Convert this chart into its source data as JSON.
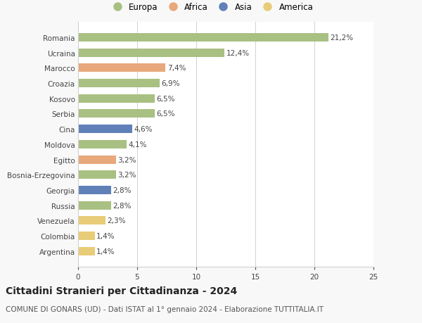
{
  "categories": [
    "Romania",
    "Ucraina",
    "Marocco",
    "Croazia",
    "Kosovo",
    "Serbia",
    "Cina",
    "Moldova",
    "Egitto",
    "Bosnia-Erzegovina",
    "Georgia",
    "Russia",
    "Venezuela",
    "Colombia",
    "Argentina"
  ],
  "values": [
    21.2,
    12.4,
    7.4,
    6.9,
    6.5,
    6.5,
    4.6,
    4.1,
    3.2,
    3.2,
    2.8,
    2.8,
    2.3,
    1.4,
    1.4
  ],
  "labels": [
    "21,2%",
    "12,4%",
    "7,4%",
    "6,9%",
    "6,5%",
    "6,5%",
    "4,6%",
    "4,1%",
    "3,2%",
    "3,2%",
    "2,8%",
    "2,8%",
    "2,3%",
    "1,4%",
    "1,4%"
  ],
  "continents": [
    "Europa",
    "Europa",
    "Africa",
    "Europa",
    "Europa",
    "Europa",
    "Asia",
    "Europa",
    "Africa",
    "Europa",
    "Asia",
    "Europa",
    "America",
    "America",
    "America"
  ],
  "colors": {
    "Europa": "#a8c082",
    "Africa": "#e8a87c",
    "Asia": "#6080b8",
    "America": "#e8cc78"
  },
  "title": "Cittadini Stranieri per Cittadinanza - 2024",
  "subtitle": "COMUNE DI GONARS (UD) - Dati ISTAT al 1° gennaio 2024 - Elaborazione TUTTITALIA.IT",
  "xlim": [
    0,
    25
  ],
  "xticks": [
    0,
    5,
    10,
    15,
    20,
    25
  ],
  "background_color": "#f8f8f8",
  "plot_bg_color": "#ffffff",
  "grid_color": "#d0d0d0",
  "label_fontsize": 7.5,
  "value_fontsize": 7.5,
  "title_fontsize": 10,
  "subtitle_fontsize": 7.5,
  "legend_fontsize": 8.5,
  "bar_height": 0.55
}
